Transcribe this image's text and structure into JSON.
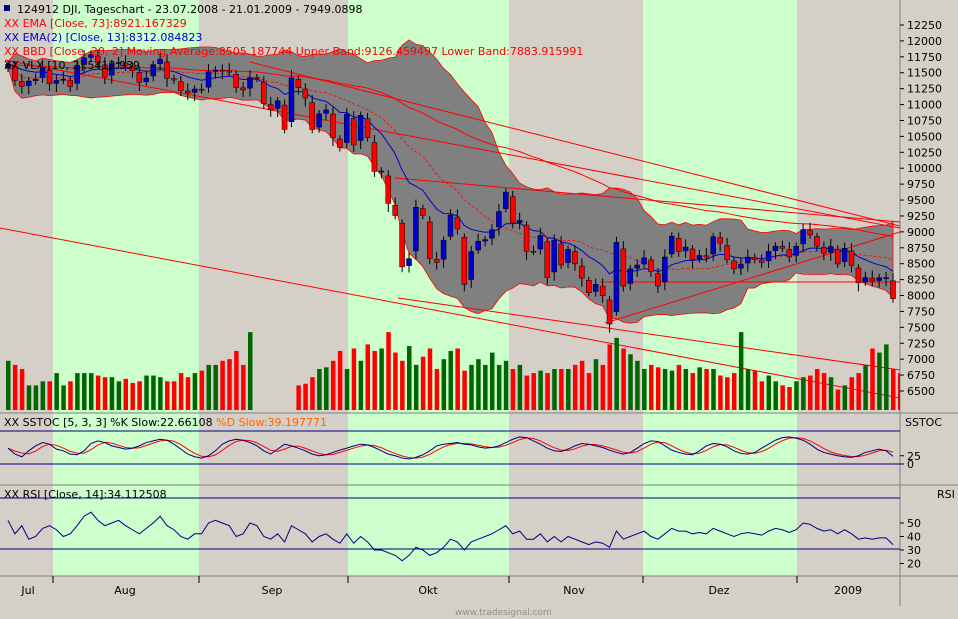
{
  "header": {
    "title": "124912  DJI, Tageschart - 23.07.2008 - 21.01.2009 - 7949.0898",
    "legend": [
      {
        "label": "XX EMA [Close, 73]:8921.167329",
        "color": "#ff0000"
      },
      {
        "label": "XX EMA(2) [Close, 13]:8312.084823",
        "color": "#0000cc"
      },
      {
        "label": "XX BBD [Close, 20, 2] Moving Average:8505.187744 Upper Band:9126.459497 Lower Band:7883.915991",
        "color": "#ff0000"
      },
      {
        "label": "XX VLX [10, 2]:5412.939",
        "color": "#000000"
      }
    ]
  },
  "sstoc": {
    "label": "XX SSTOC [5, 3, 3] %K Slow:22.66108",
    "label2": "%D Slow:39.197771",
    "panel_name": "SSTOC"
  },
  "rsi": {
    "label": "XX RSI [Close, 14]:34.112508",
    "panel_name": "RSI"
  },
  "watermark": "www.tradesignal.com",
  "colors": {
    "background": "#d4d0c8",
    "month_shade": "#ccffcc",
    "candle_up": "#0000cc",
    "candle_down": "#ff0000",
    "volume_up": "#006600",
    "volume_down": "#ff0000",
    "band_fill": "#808080"
  },
  "chart_data": {
    "type": "candlestick",
    "x_labels": [
      "Jul",
      "Aug",
      "Sep",
      "Okt",
      "Nov",
      "Dez",
      "2009"
    ],
    "y_ticks": [
      12250,
      12000,
      11750,
      11500,
      11250,
      11000,
      10750,
      10500,
      10250,
      10000,
      9750,
      9500,
      9250,
      9000,
      8750,
      8500,
      8250,
      8000,
      7750,
      7500,
      7250,
      7000,
      6750,
      6500
    ],
    "ylim": [
      6300,
      12500
    ],
    "close": [
      11632,
      11378,
      11284,
      11370,
      11397,
      11583,
      11326,
      11379,
      11397,
      11284,
      11615,
      11734,
      11782,
      11656,
      11431,
      11643,
      11660,
      11615,
      11532,
      11348,
      11417,
      11628,
      11715,
      11412,
      11386,
      11220,
      11182,
      11244,
      11230,
      11516,
      11543,
      11532,
      11510,
      11268,
      11230,
      11422,
      11415,
      11015,
      10917,
      11059,
      10609,
      11421,
      11269,
      11103,
      10609,
      10854,
      10917,
      10482,
      10325,
      10850,
      10365,
      10831,
      10482,
      9950,
      9955,
      9447,
      9258,
      8451,
      8579,
      9387,
      9258,
      8578,
      8519,
      8870,
      9265,
      9045,
      8175,
      8691,
      8852,
      8878,
      9034,
      9319,
      9625,
      9140,
      9180,
      8695,
      8693,
      8944,
      8282,
      8870,
      8479,
      8726,
      8497,
      8273,
      8046,
      8176,
      7997,
      7552,
      8835,
      8149,
      8419,
      8479,
      8591,
      8376,
      8149,
      8605,
      8934,
      8691,
      8761,
      8565,
      8629,
      8604,
      8924,
      8824,
      8565,
      8419,
      8494,
      8604,
      8565,
      8519,
      8693,
      8776,
      8742,
      8606,
      8772,
      9034,
      8953,
      8776,
      8664,
      8769,
      8495,
      8742,
      8473,
      8200,
      8282,
      8228,
      8280,
      8281,
      7949
    ],
    "volume_level": [
      0.6,
      0.55,
      0.5,
      0.3,
      0.3,
      0.35,
      0.35,
      0.45,
      0.3,
      0.35,
      0.45,
      0.45,
      0.45,
      0.42,
      0.4,
      0.4,
      0.35,
      0.38,
      0.33,
      0.35,
      0.42,
      0.42,
      0.4,
      0.35,
      0.35,
      0.45,
      0.4,
      0.45,
      0.48,
      0.55,
      0.55,
      0.6,
      0.62,
      0.72,
      0.55,
      0.95,
      0,
      0,
      0,
      0,
      0,
      0,
      0.3,
      0.32,
      0.4,
      0.5,
      0.52,
      0.6,
      0.72,
      0.5,
      0.75,
      0.6,
      0.8,
      0.72,
      0.75,
      0.95,
      0.7,
      0.6,
      0.78,
      0.55,
      0.65,
      0.75,
      0.5,
      0.62,
      0.72,
      0.75,
      0.48,
      0.55,
      0.62,
      0.55,
      0.7,
      0.55,
      0.6,
      0.5,
      0.55,
      0.42,
      0.45,
      0.48,
      0.45,
      0.5,
      0.5,
      0.5,
      0.55,
      0.6,
      0.45,
      0.62,
      0.55,
      0.8,
      0.88,
      0.75,
      0.68,
      0.6,
      0.5,
      0.55,
      0.52,
      0.5,
      0.48,
      0.55,
      0.5,
      0.45,
      0.52,
      0.5,
      0.5,
      0.42,
      0.4,
      0.45,
      0.95,
      0.5,
      0.48,
      0.35,
      0.42,
      0.35,
      0.3,
      0.28,
      0.35,
      0.4,
      0.42,
      0.5,
      0.45,
      0.4,
      0.25,
      0.3,
      0.4,
      0.45,
      0.55,
      0.75,
      0.7,
      0.8,
      0.5,
      0.45,
      0.85
    ],
    "sstoc_k": [
      48,
      30,
      22,
      40,
      55,
      65,
      60,
      45,
      40,
      30,
      28,
      40,
      62,
      70,
      65,
      55,
      50,
      45,
      48,
      55,
      65,
      70,
      75,
      72,
      60,
      45,
      30,
      22,
      18,
      25,
      40,
      60,
      70,
      75,
      72,
      65,
      55,
      40,
      30,
      45,
      60,
      55,
      48,
      40,
      30,
      25,
      28,
      35,
      42,
      48,
      55,
      60,
      58,
      50,
      40,
      30,
      25,
      18,
      15,
      20,
      28,
      40,
      55,
      60,
      62,
      65,
      60,
      58,
      52,
      48,
      50,
      55,
      65,
      75,
      82,
      80,
      70,
      60,
      48,
      40,
      38,
      45,
      55,
      62,
      60,
      55,
      50,
      42,
      35,
      30,
      35,
      48,
      62,
      70,
      68,
      55,
      42,
      35,
      30,
      28,
      40,
      55,
      62,
      60,
      52,
      40,
      32,
      30,
      35,
      48,
      60,
      72,
      80,
      82,
      78,
      72,
      60,
      45,
      35,
      30,
      25,
      22,
      20,
      25,
      35,
      40,
      45,
      40,
      23
    ],
    "rsi": [
      52,
      42,
      48,
      38,
      40,
      46,
      48,
      45,
      40,
      42,
      48,
      55,
      58,
      52,
      48,
      50,
      52,
      48,
      45,
      42,
      46,
      50,
      55,
      48,
      45,
      40,
      38,
      42,
      42,
      50,
      52,
      50,
      48,
      40,
      42,
      50,
      48,
      40,
      38,
      42,
      36,
      48,
      45,
      42,
      36,
      40,
      42,
      38,
      35,
      42,
      35,
      40,
      36,
      30,
      30,
      28,
      26,
      22,
      26,
      32,
      30,
      26,
      28,
      32,
      38,
      36,
      30,
      36,
      38,
      40,
      42,
      45,
      48,
      42,
      44,
      38,
      38,
      42,
      36,
      40,
      36,
      40,
      38,
      36,
      34,
      36,
      35,
      32,
      44,
      38,
      40,
      42,
      44,
      40,
      38,
      42,
      46,
      44,
      44,
      42,
      43,
      42,
      46,
      44,
      42,
      40,
      42,
      43,
      42,
      41,
      44,
      46,
      45,
      43,
      45,
      50,
      49,
      46,
      44,
      45,
      42,
      45,
      42,
      38,
      39,
      38,
      39,
      39,
      34
    ],
    "sstoc_ticks": [
      25,
      0
    ],
    "rsi_ticks": [
      50,
      40,
      30,
      20
    ]
  }
}
